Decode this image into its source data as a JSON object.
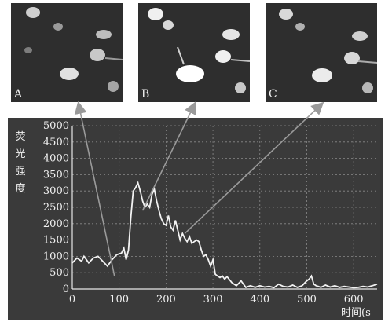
{
  "panels": [
    {
      "letter": "A",
      "time_s": 90
    },
    {
      "letter": "B",
      "time_s": 150
    },
    {
      "letter": "C",
      "time_s": 240
    }
  ],
  "colors": {
    "panel_bg": "#2e2e2e",
    "chart_bg": "#3a3a3a",
    "line": "#f2f2f2",
    "arrow": "#9a9a9a",
    "grid": "#8a8a8a"
  },
  "chart_data": {
    "type": "line",
    "ylabel": [
      "荧",
      "光",
      "强",
      "度"
    ],
    "xlabel": "时间(s",
    "xlim": [
      0,
      650
    ],
    "ylim": [
      0,
      5000
    ],
    "xticks": [
      0,
      100,
      200,
      300,
      400,
      500,
      600
    ],
    "yticks": [
      0,
      500,
      1000,
      1500,
      2000,
      2500,
      3000,
      3500,
      4000,
      4500,
      5000
    ],
    "grid": true,
    "series": [
      {
        "x": [
          0,
          10,
          20,
          25,
          35,
          45,
          55,
          65,
          75,
          85,
          95,
          105,
          110,
          115,
          120,
          125,
          130,
          135,
          140,
          145,
          150,
          155,
          160,
          165,
          170,
          175,
          180,
          185,
          190,
          195,
          200,
          205,
          210,
          215,
          220,
          225,
          230,
          235,
          240,
          245,
          250,
          255,
          260,
          265,
          270,
          275,
          280,
          285,
          290,
          295,
          300,
          305,
          310,
          315,
          320,
          325,
          330,
          340,
          350,
          360,
          370,
          380,
          390,
          400,
          410,
          420,
          430,
          440,
          450,
          460,
          470,
          480,
          490,
          500,
          505,
          510,
          515,
          520,
          525,
          530,
          540,
          550,
          560,
          570,
          580,
          590,
          600,
          610,
          620,
          630,
          640,
          650
        ],
        "y": [
          800,
          950,
          850,
          1000,
          800,
          950,
          1000,
          850,
          700,
          900,
          1050,
          1100,
          1250,
          900,
          1200,
          2200,
          3000,
          3100,
          3250,
          3000,
          2700,
          2500,
          2600,
          2500,
          2900,
          3050,
          2700,
          2400,
          2150,
          2000,
          1950,
          2250,
          1900,
          1800,
          2100,
          1800,
          1500,
          1700,
          1550,
          1450,
          1600,
          1400,
          1450,
          1500,
          1450,
          1200,
          1000,
          1050,
          900,
          700,
          900,
          450,
          400,
          350,
          400,
          300,
          380,
          200,
          100,
          250,
          50,
          100,
          50,
          100,
          60,
          80,
          40,
          150,
          80,
          60,
          120,
          50,
          100,
          250,
          300,
          400,
          150,
          100,
          80,
          50,
          120,
          60,
          100,
          50,
          80,
          60,
          40,
          50,
          80,
          60,
          100,
          150
        ]
      }
    ],
    "arrows": [
      {
        "from": [
          90,
          400
        ],
        "to_panel": "A"
      },
      {
        "from": [
          150,
          2400
        ],
        "to_panel": "B"
      },
      {
        "from": [
          240,
          1700
        ],
        "to_panel": "C"
      }
    ]
  }
}
